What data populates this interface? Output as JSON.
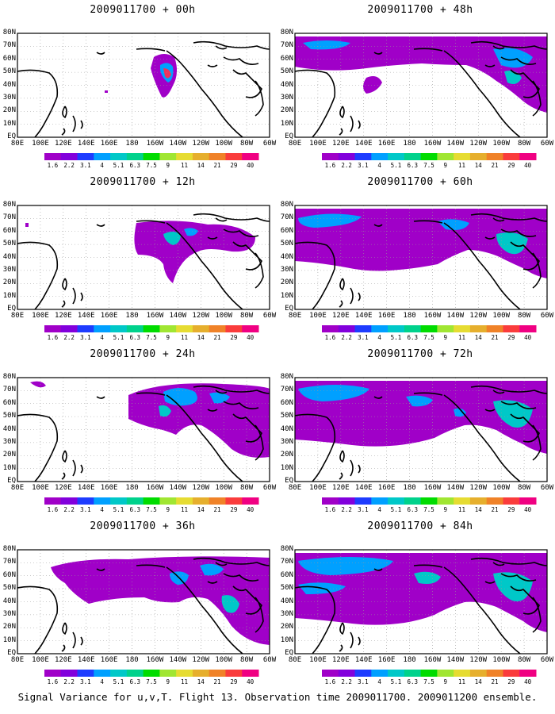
{
  "caption": "Signal Variance for u,v,T. Flight 13. Observation time 2009011700. 2009011200 ensemble.",
  "colorbar": {
    "levels": [
      "1.6",
      "2.2",
      "3.1",
      "4",
      "5.1",
      "6.3",
      "7.5",
      "9",
      "11",
      "14",
      "21",
      "29",
      "40"
    ],
    "colors": [
      "#a000c8",
      "#8200dc",
      "#1e3cff",
      "#00a0ff",
      "#00c8c8",
      "#00d28c",
      "#00dc00",
      "#a0e632",
      "#e6dc32",
      "#e6af2d",
      "#f08228",
      "#fa3c3c",
      "#f00082"
    ]
  },
  "axes": {
    "ylabels": [
      "80N",
      "70N",
      "60N",
      "50N",
      "40N",
      "30N",
      "20N",
      "10N",
      "EQ"
    ],
    "xlabels": [
      "80E",
      "100E",
      "120E",
      "140E",
      "160E",
      "180",
      "160W",
      "140W",
      "120W",
      "100W",
      "80W",
      "60W"
    ]
  },
  "chart_data": [
    {
      "type": "heatmap",
      "title": "2009011700 + 00h",
      "field": "signal variance u,v,T",
      "lon_range": [
        "80E",
        "60W"
      ],
      "lat_range": [
        "EQ",
        "80N"
      ],
      "coverage": "small",
      "max_level": "14"
    },
    {
      "type": "heatmap",
      "title": "2009011700 + 12h",
      "field": "signal variance u,v,T",
      "lon_range": [
        "80E",
        "60W"
      ],
      "lat_range": [
        "EQ",
        "80N"
      ],
      "coverage": "small-medium",
      "max_level": "7.5"
    },
    {
      "type": "heatmap",
      "title": "2009011700 + 24h",
      "field": "signal variance u,v,T",
      "lon_range": [
        "80E",
        "60W"
      ],
      "lat_range": [
        "EQ",
        "80N"
      ],
      "coverage": "medium",
      "max_level": "6.3"
    },
    {
      "type": "heatmap",
      "title": "2009011700 + 36h",
      "field": "signal variance u,v,T",
      "lon_range": [
        "80E",
        "60W"
      ],
      "lat_range": [
        "EQ",
        "80N"
      ],
      "coverage": "medium-large",
      "max_level": "6.3"
    },
    {
      "type": "heatmap",
      "title": "2009011700 + 48h",
      "field": "signal variance u,v,T",
      "lon_range": [
        "80E",
        "60W"
      ],
      "lat_range": [
        "EQ",
        "80N"
      ],
      "coverage": "large",
      "max_level": "6.3"
    },
    {
      "type": "heatmap",
      "title": "2009011700 + 60h",
      "field": "signal variance u,v,T",
      "lon_range": [
        "80E",
        "60W"
      ],
      "lat_range": [
        "EQ",
        "80N"
      ],
      "coverage": "large",
      "max_level": "6.3"
    },
    {
      "type": "heatmap",
      "title": "2009011700 + 72h",
      "field": "signal variance u,v,T",
      "lon_range": [
        "80E",
        "60W"
      ],
      "lat_range": [
        "EQ",
        "80N"
      ],
      "coverage": "very large",
      "max_level": "6.3"
    },
    {
      "type": "heatmap",
      "title": "2009011700 + 84h",
      "field": "signal variance u,v,T",
      "lon_range": [
        "80E",
        "60W"
      ],
      "lat_range": [
        "EQ",
        "80N"
      ],
      "coverage": "very large",
      "max_level": "6.3"
    }
  ]
}
